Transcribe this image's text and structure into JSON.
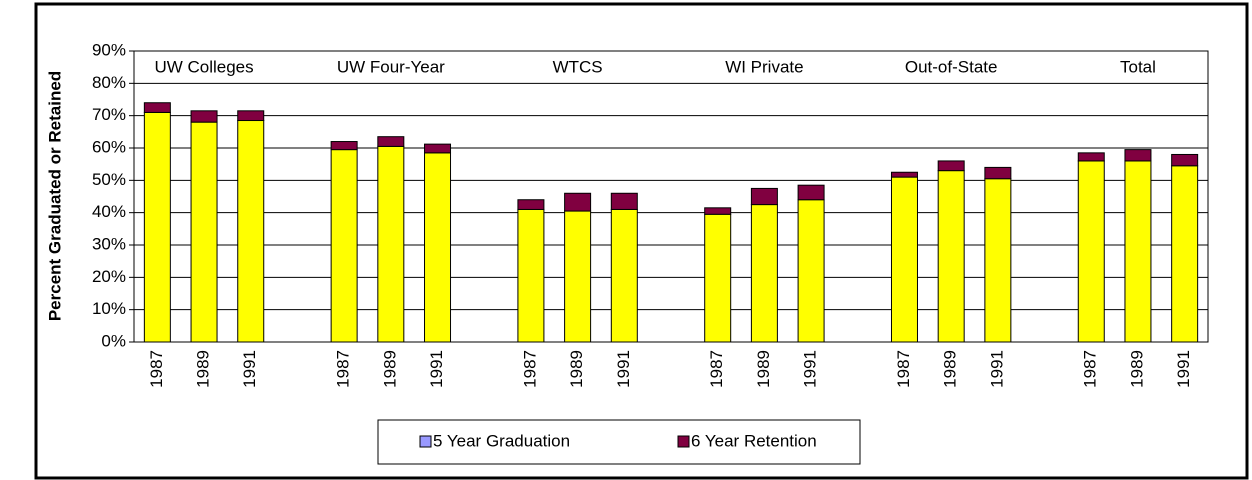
{
  "chart_data": {
    "type": "stacked_bar",
    "y_axis_label": "Percent Graduated or Retained",
    "groups": [
      "UW Colleges",
      "UW Four-Year",
      "WTCS",
      "WI Private",
      "Out-of-State",
      "Total"
    ],
    "categories": [
      "1987",
      "1989",
      "1991",
      null,
      "1987",
      "1989",
      "1991",
      null,
      "1987",
      "1989",
      "1991",
      null,
      "1987",
      "1989",
      "1991",
      null,
      "1987",
      "1989",
      "1991",
      null,
      "1987",
      "1989",
      "1991"
    ],
    "series": [
      {
        "name": "5 Year Graduation",
        "color": "#ffff00",
        "legend_color": "#9999ff",
        "values": [
          71,
          68,
          68.5,
          null,
          59.5,
          60.5,
          58.5,
          null,
          41,
          40.5,
          41,
          null,
          39.5,
          42.5,
          44,
          null,
          51,
          53,
          50.5,
          null,
          56,
          56,
          54.5
        ]
      },
      {
        "name": "6 Year Retention",
        "color": "#800040",
        "legend_color": "#800040",
        "values": [
          3,
          3.5,
          3,
          null,
          2.5,
          3,
          2.7,
          null,
          3,
          5.5,
          5,
          null,
          2,
          5,
          4.5,
          null,
          1.5,
          3,
          3.5,
          null,
          2.5,
          3.5,
          3.5
        ]
      }
    ],
    "ylim": [
      0,
      90
    ],
    "yticks": [
      {
        "value": 0,
        "label": "0%"
      },
      {
        "value": 10,
        "label": "10%"
      },
      {
        "value": 20,
        "label": "20%"
      },
      {
        "value": 30,
        "label": "30%"
      },
      {
        "value": 40,
        "label": "40%"
      },
      {
        "value": 50,
        "label": "50%"
      },
      {
        "value": 60,
        "label": "60%"
      },
      {
        "value": 70,
        "label": "70%"
      },
      {
        "value": 80,
        "label": "80%"
      },
      {
        "value": 90,
        "label": "90%"
      }
    ],
    "grid": true
  }
}
